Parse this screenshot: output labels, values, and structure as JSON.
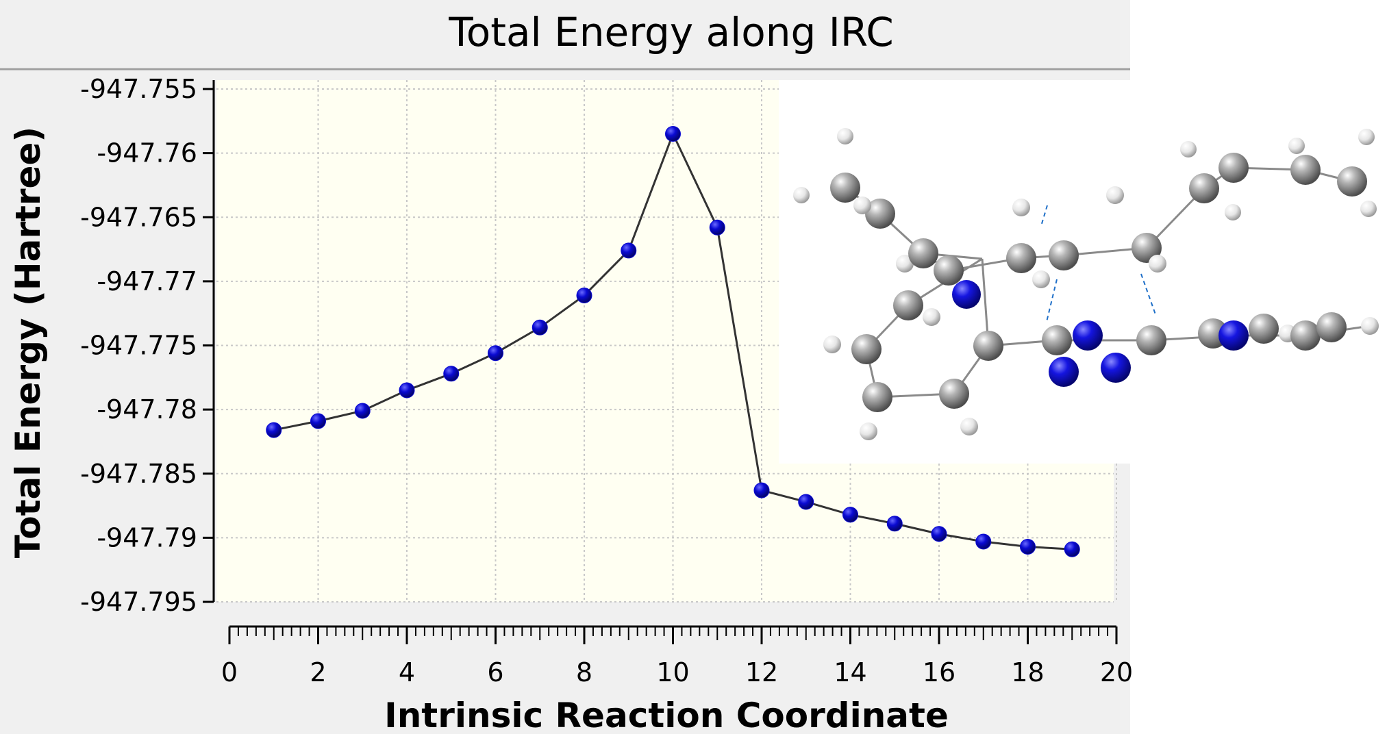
{
  "chart_data": {
    "type": "line",
    "title": "Total Energy along IRC",
    "xlabel": "Intrinsic Reaction Coordinate",
    "ylabel": "Total Energy (Hartree)",
    "xlim": [
      0,
      20
    ],
    "ylim": [
      -947.795,
      -947.755
    ],
    "x_ticks": [
      0,
      2,
      4,
      6,
      8,
      10,
      12,
      14,
      16,
      18,
      20
    ],
    "y_ticks": [
      -947.755,
      -947.76,
      -947.765,
      -947.77,
      -947.775,
      -947.78,
      -947.785,
      -947.79,
      -947.795
    ],
    "x_tick_labels": [
      "0",
      "2",
      "4",
      "6",
      "8",
      "10",
      "12",
      "14",
      "16",
      "18",
      "20"
    ],
    "y_tick_labels": [
      "-947.755",
      "-947.76",
      "-947.765",
      "-947.77",
      "-947.775",
      "-947.78",
      "-947.785",
      "-947.79",
      "-947.795"
    ],
    "grid": true,
    "series": [
      {
        "x": [
          1,
          2,
          3,
          4,
          5,
          6,
          7,
          8,
          9,
          10,
          11,
          12,
          13,
          14,
          15,
          16,
          17,
          18,
          19
        ],
        "values": [
          -947.7816,
          -947.7809,
          -947.7801,
          -947.7785,
          -947.7772,
          -947.7756,
          -947.7736,
          -947.7711,
          -947.7676,
          -947.7585,
          -947.7658,
          -947.7863,
          -947.7872,
          -947.7882,
          -947.7889,
          -947.7897,
          -947.7903,
          -947.7907,
          -947.7909
        ],
        "marker_color": "#0a0ad2",
        "line_color": "#333333"
      }
    ]
  },
  "colors": {
    "panel_bg": "#f0f0f0",
    "plot_bg": "#fffff2",
    "grid": "#c8c8c8",
    "atom_carbon": "#8f8f8f",
    "atom_hydrogen": "#e4e4e4",
    "atom_nitrogen": "#1010cc",
    "bond_vector": "#1e6fc8"
  },
  "molecule_inset": {
    "label": "molecular-structure-image"
  }
}
